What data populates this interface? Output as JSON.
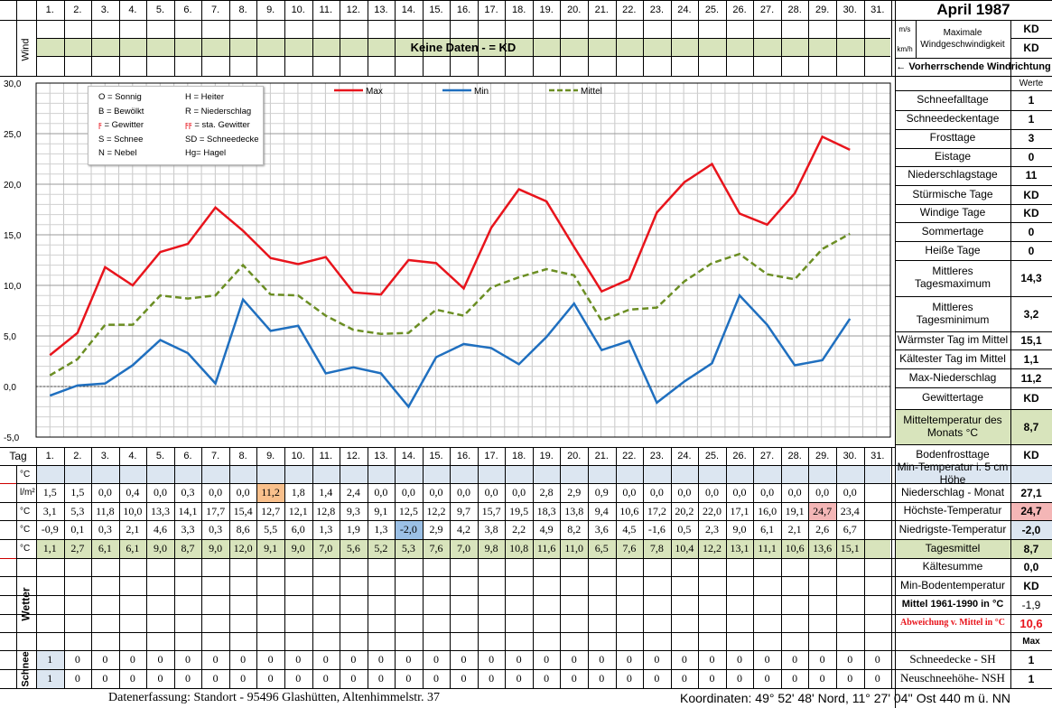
{
  "title": "April 1987",
  "days": [
    "1.",
    "2.",
    "3.",
    "4.",
    "5.",
    "6.",
    "7.",
    "8.",
    "9.",
    "10.",
    "11.",
    "12.",
    "13.",
    "14.",
    "15.",
    "16.",
    "17.",
    "18.",
    "19.",
    "20.",
    "21.",
    "22.",
    "23.",
    "24.",
    "25.",
    "26.",
    "27.",
    "28.",
    "29.",
    "30.",
    "31."
  ],
  "wind": {
    "label": "Wind",
    "unit_ms": "m/s",
    "unit_kmh": "km/h",
    "no_data": "Keine Daten -  = KD",
    "max_label": "Maximale Windgeschwindigkeit",
    "max_ms": "KD",
    "max_kmh": "KD",
    "direction_label": "← Vorherrschende Windrichtung"
  },
  "legend": {
    "codes": [
      "O = Sonnig",
      "H = Heiter",
      "B = Bewölkt",
      "R = Niederschlag",
      "ϝ = Gewitter",
      "ϝϝ = sta. Gewitter",
      "S = Schnee",
      "SD = Schneedecke",
      "N = Nebel",
      "Hg= Hagel"
    ],
    "series": [
      "Max",
      "Min",
      "Mittel"
    ]
  },
  "colors": {
    "max": "#e8141c",
    "min": "#1f6fbf",
    "mittel": "#6b8e23",
    "green": "#d8e4bc",
    "blue": "#dce6f1",
    "orange": "#f9c08c",
    "pink": "#f4b6b6",
    "lightblue": "#9bc0e6"
  },
  "chart_data": {
    "type": "line",
    "x": [
      "1.",
      "2.",
      "3.",
      "4.",
      "5.",
      "6.",
      "7.",
      "8.",
      "9.",
      "10.",
      "11.",
      "12.",
      "13.",
      "14.",
      "15.",
      "16.",
      "17.",
      "18.",
      "19.",
      "20.",
      "21.",
      "22.",
      "23.",
      "24.",
      "25.",
      "26.",
      "27.",
      "28.",
      "29.",
      "30."
    ],
    "series": [
      {
        "name": "Max",
        "values": [
          3.1,
          5.3,
          11.8,
          10.0,
          13.3,
          14.1,
          17.7,
          15.4,
          12.7,
          12.1,
          12.8,
          9.3,
          9.1,
          12.5,
          12.2,
          9.7,
          15.7,
          19.5,
          18.3,
          13.8,
          9.4,
          10.6,
          17.2,
          20.2,
          22.0,
          17.1,
          16.0,
          19.1,
          24.7,
          23.4
        ]
      },
      {
        "name": "Min",
        "values": [
          -0.9,
          0.1,
          0.3,
          2.1,
          4.6,
          3.3,
          0.3,
          8.6,
          5.5,
          6.0,
          1.3,
          1.9,
          1.3,
          -2.0,
          2.9,
          4.2,
          3.8,
          2.2,
          4.9,
          8.2,
          3.6,
          4.5,
          -1.6,
          0.5,
          2.3,
          9.0,
          6.1,
          2.1,
          2.6,
          6.7
        ]
      },
      {
        "name": "Mittel",
        "values": [
          1.1,
          2.7,
          6.1,
          6.1,
          9.0,
          8.7,
          9.0,
          12.0,
          9.1,
          9.0,
          7.0,
          5.6,
          5.2,
          5.3,
          7.6,
          7.0,
          9.8,
          10.8,
          11.6,
          11.0,
          6.5,
          7.6,
          7.8,
          10.4,
          12.2,
          13.1,
          11.1,
          10.6,
          13.6,
          15.1
        ]
      }
    ],
    "ylim": [
      -5,
      30
    ],
    "yticks": [
      "30,0",
      "25,0",
      "20,0",
      "15,0",
      "10,0",
      "5,0",
      "0,0",
      "-5,0"
    ],
    "grid": true
  },
  "table": {
    "tag_label": "Tag",
    "unit_c": "°C",
    "unit_lm2": "l/m²",
    "precip": [
      "1,5",
      "1,5",
      "0,0",
      "0,4",
      "0,0",
      "0,3",
      "0,0",
      "0,0",
      "11,2",
      "1,8",
      "1,4",
      "2,4",
      "0,0",
      "0,0",
      "0,0",
      "0,0",
      "0,0",
      "0,0",
      "2,8",
      "2,9",
      "0,9",
      "0,0",
      "0,0",
      "0,0",
      "0,0",
      "0,0",
      "0,0",
      "0,0",
      "0,0",
      "0,0"
    ],
    "max": [
      "3,1",
      "5,3",
      "11,8",
      "10,0",
      "13,3",
      "14,1",
      "17,7",
      "15,4",
      "12,7",
      "12,1",
      "12,8",
      "9,3",
      "9,1",
      "12,5",
      "12,2",
      "9,7",
      "15,7",
      "19,5",
      "18,3",
      "13,8",
      "9,4",
      "10,6",
      "17,2",
      "20,2",
      "22,0",
      "17,1",
      "16,0",
      "19,1",
      "24,7",
      "23,4"
    ],
    "min": [
      "-0,9",
      "0,1",
      "0,3",
      "2,1",
      "4,6",
      "3,3",
      "0,3",
      "8,6",
      "5,5",
      "6,0",
      "1,3",
      "1,9",
      "1,3",
      "-2,0",
      "2,9",
      "4,2",
      "3,8",
      "2,2",
      "4,9",
      "8,2",
      "3,6",
      "4,5",
      "-1,6",
      "0,5",
      "2,3",
      "9,0",
      "6,1",
      "2,1",
      "2,6",
      "6,7"
    ],
    "mean": [
      "1,1",
      "2,7",
      "6,1",
      "6,1",
      "9,0",
      "8,7",
      "9,0",
      "12,0",
      "9,1",
      "9,0",
      "7,0",
      "5,6",
      "5,2",
      "5,3",
      "7,6",
      "7,0",
      "9,8",
      "10,8",
      "11,6",
      "11,0",
      "6,5",
      "7,6",
      "7,8",
      "10,4",
      "12,2",
      "13,1",
      "11,1",
      "10,6",
      "13,6",
      "15,1"
    ],
    "wetter_label": "Wetter",
    "schnee_label": "Schnee",
    "snow_sh": [
      "1",
      "0",
      "0",
      "0",
      "0",
      "0",
      "0",
      "0",
      "0",
      "0",
      "0",
      "0",
      "0",
      "0",
      "0",
      "0",
      "0",
      "0",
      "0",
      "0",
      "0",
      "0",
      "0",
      "0",
      "0",
      "0",
      "0",
      "0",
      "0",
      "0",
      "0"
    ],
    "snow_nsh": [
      "1",
      "0",
      "0",
      "0",
      "0",
      "0",
      "0",
      "0",
      "0",
      "0",
      "0",
      "0",
      "0",
      "0",
      "0",
      "0",
      "0",
      "0",
      "0",
      "0",
      "0",
      "0",
      "0",
      "0",
      "0",
      "0",
      "0",
      "0",
      "0",
      "0",
      "0"
    ]
  },
  "stats": {
    "werte": "Werte",
    "items": [
      {
        "label": "Schneefalltage",
        "value": "1"
      },
      {
        "label": "Schneedeckentage",
        "value": "1"
      },
      {
        "label": "Frosttage",
        "value": "3"
      },
      {
        "label": "Eistage",
        "value": "0"
      },
      {
        "label": "Niederschlagstage",
        "value": "11"
      },
      {
        "label": "Stürmische Tage",
        "value": "KD"
      },
      {
        "label": "Windige Tage",
        "value": "KD"
      },
      {
        "label": "Sommertage",
        "value": "0"
      },
      {
        "label": "Heiße Tage",
        "value": "0"
      },
      {
        "label": "Mittleres Tagesmaximum",
        "value": "14,3"
      },
      {
        "label": "Mittleres Tagesminimum",
        "value": "3,2"
      },
      {
        "label": "Wärmster Tag im Mittel",
        "value": "15,1"
      },
      {
        "label": "Kältester Tag im Mittel",
        "value": "1,1"
      },
      {
        "label": "Max-Niederschlag",
        "value": "11,2"
      },
      {
        "label": "Gewittertage",
        "value": "KD"
      },
      {
        "label": "Mitteltemperatur des Monats °C",
        "value": "8,7"
      },
      {
        "label": "Bodenfrosttage",
        "value": "KD"
      }
    ],
    "lower": [
      {
        "label": "Min-Temperatur i. 5 cm Höhe",
        "value": ""
      },
      {
        "label": "Niederschlag - Monat",
        "value": "27,1"
      },
      {
        "label": "Höchste-Temperatur",
        "value": "24,7"
      },
      {
        "label": "Niedrigste-Temperatur",
        "value": "-2,0"
      },
      {
        "label": "Tagesmittel",
        "value": "8,7"
      },
      {
        "label": "Kältesumme",
        "value": "0,0"
      },
      {
        "label": "Min-Bodentemperatur",
        "value": "KD"
      },
      {
        "label": "Mittel 1961-1990 in °C",
        "value": "-1,9"
      },
      {
        "label": "Abweichung v. Mittel in °C",
        "value": "10,6"
      }
    ],
    "max_header": "Max",
    "snow": [
      {
        "label": "Schneedecke -  SH",
        "value": "1"
      },
      {
        "label": "Neuschneehöhe- NSH",
        "value": "1"
      }
    ]
  },
  "footer": {
    "left": "Datenerfassung:  Standort -  95496  Glashütten, Altenhimmelstr. 37",
    "right": "Koordinaten:  49° 52' 48' Nord,  11° 27' 04'' Ost   440 m ü. NN"
  }
}
